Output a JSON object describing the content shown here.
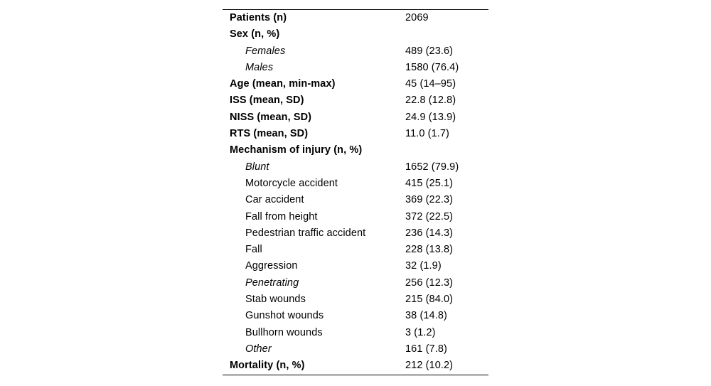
{
  "page": {
    "background_color": "#ffffff",
    "text_color": "#000000",
    "rule_color": "#000000"
  },
  "table": {
    "columns": [
      "label",
      "value"
    ],
    "rows": [
      {
        "label": "Patients (n)",
        "value": "2069",
        "style": "bold",
        "indent": 0
      },
      {
        "label": "Sex (n, %)",
        "value": "",
        "style": "bold",
        "indent": 0
      },
      {
        "label": "Females",
        "value": "489 (23.6)",
        "style": "italic",
        "indent": 1
      },
      {
        "label": "Males",
        "value": "1580 (76.4)",
        "style": "italic",
        "indent": 1
      },
      {
        "label": "Age (mean, min-max)",
        "value": "45 (14–95)",
        "style": "bold",
        "indent": 0
      },
      {
        "label": "ISS (mean, SD)",
        "value": "22.8 (12.8)",
        "style": "bold",
        "indent": 0
      },
      {
        "label": "NISS (mean, SD)",
        "value": "24.9 (13.9)",
        "style": "bold",
        "indent": 0
      },
      {
        "label": "RTS (mean, SD)",
        "value": "11.0 (1.7)",
        "style": "bold",
        "indent": 0
      },
      {
        "label": "Mechanism of injury (n, %)",
        "value": "",
        "style": "bold",
        "indent": 0
      },
      {
        "label": "Blunt",
        "value": "1652 (79.9)",
        "style": "italic",
        "indent": 1
      },
      {
        "label": "Motorcycle accident",
        "value": "415 (25.1)",
        "style": "plain",
        "indent": 1
      },
      {
        "label": "Car accident",
        "value": "369 (22.3)",
        "style": "plain",
        "indent": 1
      },
      {
        "label": "Fall from height",
        "value": "372 (22.5)",
        "style": "plain",
        "indent": 1
      },
      {
        "label": "Pedestrian traffic accident",
        "value": "236 (14.3)",
        "style": "plain",
        "indent": 1
      },
      {
        "label": "Fall",
        "value": "228 (13.8)",
        "style": "plain",
        "indent": 1
      },
      {
        "label": "Aggression",
        "value": "32 (1.9)",
        "style": "plain",
        "indent": 1
      },
      {
        "label": "Penetrating",
        "value": "256 (12.3)",
        "style": "italic",
        "indent": 1
      },
      {
        "label": "Stab wounds",
        "value": "215 (84.0)",
        "style": "plain",
        "indent": 1
      },
      {
        "label": "Gunshot wounds",
        "value": "38 (14.8)",
        "style": "plain",
        "indent": 1
      },
      {
        "label": "Bullhorn wounds",
        "value": "3 (1.2)",
        "style": "plain",
        "indent": 1
      },
      {
        "label": "Other",
        "value": "161 (7.8)",
        "style": "italic",
        "indent": 1
      },
      {
        "label": "Mortality (n, %)",
        "value": "212 (10.2)",
        "style": "bold",
        "indent": 0
      }
    ]
  }
}
